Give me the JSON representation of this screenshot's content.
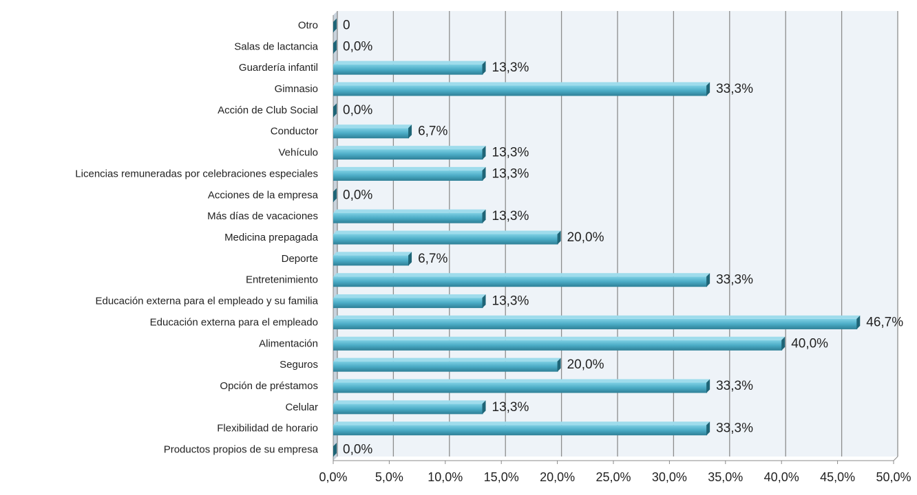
{
  "chart_data": {
    "type": "bar",
    "orientation": "horizontal",
    "categories": [
      "Otro",
      "Salas de lactancia",
      "Guardería infantil",
      "Gimnasio",
      "Acción de Club Social",
      "Conductor",
      "Vehículo",
      "Licencias remuneradas por celebraciones especiales",
      "Acciones de la empresa",
      "Más días de vacaciones",
      "Medicina prepagada",
      "Deporte",
      "Entretenimiento",
      "Educación externa para el empleado y su familia",
      "Educación externa para el empleado",
      "Alimentación",
      "Seguros",
      "Opción de préstamos",
      "Celular",
      "Flexibilidad de horario",
      "Productos propios de su empresa"
    ],
    "values": [
      0,
      0,
      13.3,
      33.3,
      0,
      6.7,
      13.3,
      13.3,
      0,
      13.3,
      20,
      6.7,
      33.3,
      13.3,
      46.7,
      40,
      20,
      33.3,
      13.3,
      33.3,
      0
    ],
    "value_labels": [
      "0",
      "0,0%",
      "13,3%",
      "33,3%",
      "0,0%",
      "6,7%",
      "13,3%",
      "13,3%",
      "0,0%",
      "13,3%",
      "20,0%",
      "6,7%",
      "33,3%",
      "13,3%",
      "46,7%",
      "40,0%",
      "20,0%",
      "33,3%",
      "13,3%",
      "33,3%",
      "0,0%"
    ],
    "color": "#4bacc6",
    "xlim": [
      0,
      50
    ],
    "xticks": [
      {
        "value": 0,
        "label": "0,0%"
      },
      {
        "value": 5,
        "label": "5,0%"
      },
      {
        "value": 10,
        "label": "10,0%"
      },
      {
        "value": 15,
        "label": "15,0%"
      },
      {
        "value": 20,
        "label": "20,0%"
      },
      {
        "value": 25,
        "label": "25,0%"
      },
      {
        "value": 30,
        "label": "30,0%"
      },
      {
        "value": 35,
        "label": "35,0%"
      },
      {
        "value": 40,
        "label": "40,0%"
      },
      {
        "value": 45,
        "label": "45,0%"
      },
      {
        "value": 50,
        "label": "50,0%"
      }
    ],
    "grid": true
  }
}
